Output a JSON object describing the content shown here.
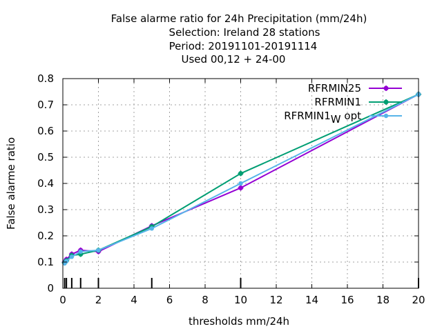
{
  "chart_data": {
    "type": "line",
    "title_lines": [
      "False alarme ratio  for 24h Precipitation (mm/24h)",
      "Selection: Ireland     28 stations",
      "Period: 20191101-20191114",
      "Used  00,12  + 24-00"
    ],
    "xlabel": "thresholds mm/24h",
    "ylabel": "False alarme ratio",
    "xlim": [
      0,
      20
    ],
    "ylim": [
      0,
      0.8
    ],
    "xticks": [
      0,
      2,
      4,
      6,
      8,
      10,
      12,
      14,
      16,
      18,
      20
    ],
    "yticks": [
      0,
      0.1,
      0.2,
      0.3,
      0.4,
      0.5,
      0.6,
      0.7,
      0.8
    ],
    "grid": true,
    "legend_position": "top-right",
    "threshold_marks": [
      0.1,
      0.2,
      0.5,
      1,
      2,
      5,
      10,
      20
    ],
    "series": [
      {
        "name": "RFRMIN25",
        "color": "#9400d3",
        "x": [
          0.1,
          0.2,
          0.5,
          1,
          2,
          5,
          10,
          20
        ],
        "y": [
          0.1,
          0.11,
          0.13,
          0.145,
          0.14,
          0.238,
          0.383,
          0.74
        ]
      },
      {
        "name": "RFRMIN1",
        "color": "#009e73",
        "x": [
          0.1,
          0.2,
          0.5,
          1,
          2,
          5,
          10,
          20
        ],
        "y": [
          0.097,
          0.105,
          0.125,
          0.13,
          0.145,
          0.235,
          0.438,
          0.74
        ]
      },
      {
        "name": "RFRMIN1",
        "name_subscript": "W",
        "name_suffix": " opt",
        "color": "#56b4e9",
        "x": [
          0.1,
          0.2,
          0.5,
          1,
          2,
          5,
          10,
          20
        ],
        "y": [
          0.095,
          0.103,
          0.12,
          0.14,
          0.145,
          0.228,
          0.4,
          0.74
        ]
      }
    ]
  }
}
